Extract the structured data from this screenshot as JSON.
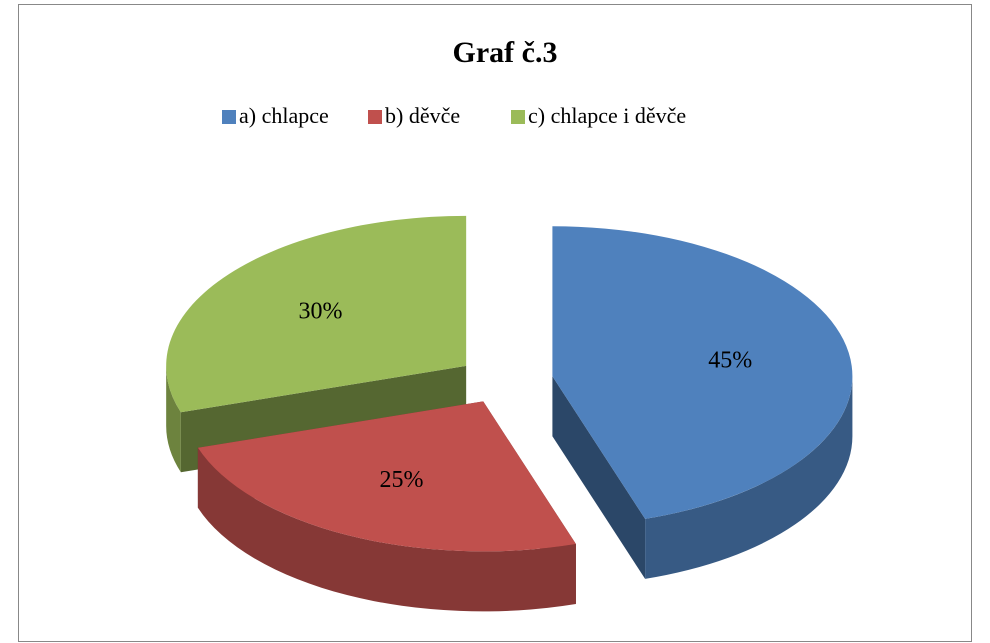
{
  "chart_data": {
    "type": "pie",
    "title": "Graf č.3",
    "categories": [
      "a) chlapce",
      "b) děvče",
      "c) chlapce i děvče"
    ],
    "values": [
      45,
      25,
      30
    ],
    "value_labels": [
      "45%",
      "25%",
      "30%"
    ],
    "colors": [
      "#4f81bd",
      "#c0504d",
      "#9bbb59"
    ],
    "legend": "top"
  }
}
